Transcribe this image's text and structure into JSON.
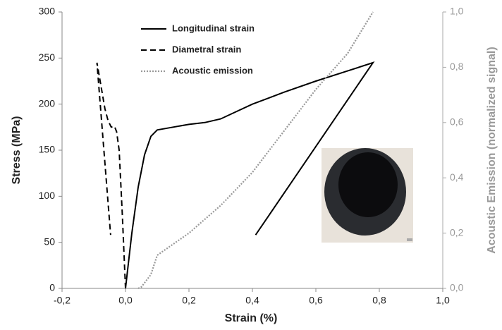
{
  "chart_data": {
    "type": "line",
    "xlabel": "Strain (%)",
    "ylabel": "Stress (MPa)",
    "y2label": "Acoustic Emission (normalized signal)",
    "xlim": [
      -0.2,
      1.0
    ],
    "xticks": [
      {
        "value": -0.2,
        "label": "-0,2"
      },
      {
        "value": 0,
        "label": "0,0"
      },
      {
        "value": 0.2,
        "label": "0,2"
      },
      {
        "value": 0.4,
        "label": "0,4"
      },
      {
        "value": 0.6,
        "label": "0,6"
      },
      {
        "value": 0.8,
        "label": "0,8"
      },
      {
        "value": 1.0,
        "label": "1,0"
      }
    ],
    "ylim": [
      0,
      300
    ],
    "yticks": [
      0,
      50,
      100,
      150,
      200,
      250,
      300
    ],
    "y2lim": [
      0,
      1
    ],
    "y2ticks": [
      {
        "value": 0,
        "label": "0,0"
      },
      {
        "value": 0.2,
        "label": "0,2"
      },
      {
        "value": 0.4,
        "label": "0,4"
      },
      {
        "value": 0.6,
        "label": "0,6"
      },
      {
        "value": 0.8,
        "label": "0,8"
      },
      {
        "value": 1.0,
        "label": "1,0"
      }
    ],
    "legend": "top",
    "series": [
      {
        "name": "Longitudinal strain",
        "color": "#000000",
        "dash": "solid",
        "x": [
          0,
          0.01,
          0.02,
          0.04,
          0.06,
          0.08,
          0.1,
          0.15,
          0.2,
          0.25,
          0.3,
          0.35,
          0.4,
          0.5,
          0.6,
          0.7,
          0.78,
          0.41
        ],
        "values": [
          0,
          30,
          60,
          110,
          145,
          165,
          172,
          175,
          178,
          180,
          184,
          192,
          200,
          213,
          225,
          236,
          245,
          58
        ]
      },
      {
        "name": "Diametral strain",
        "color": "#000000",
        "dash": "dashed",
        "x": [
          0,
          -0.01,
          -0.02,
          -0.028,
          -0.035,
          -0.045,
          -0.055,
          -0.065,
          -0.075,
          -0.085,
          -0.09,
          -0.047
        ],
        "values": [
          0,
          80,
          150,
          170,
          176,
          175,
          182,
          195,
          215,
          235,
          245,
          58
        ]
      },
      {
        "name": "Acoustic emission",
        "color": "#999999",
        "dash": "dotted",
        "axis": "y2",
        "x": [
          0.04,
          0.05,
          0.08,
          0.1,
          0.15,
          0.2,
          0.3,
          0.4,
          0.5,
          0.6,
          0.7,
          0.78
        ],
        "values": [
          0,
          0.005,
          0.05,
          0.12,
          0.16,
          0.2,
          0.3,
          0.42,
          0.57,
          0.72,
          0.85,
          1.0
        ]
      }
    ]
  }
}
